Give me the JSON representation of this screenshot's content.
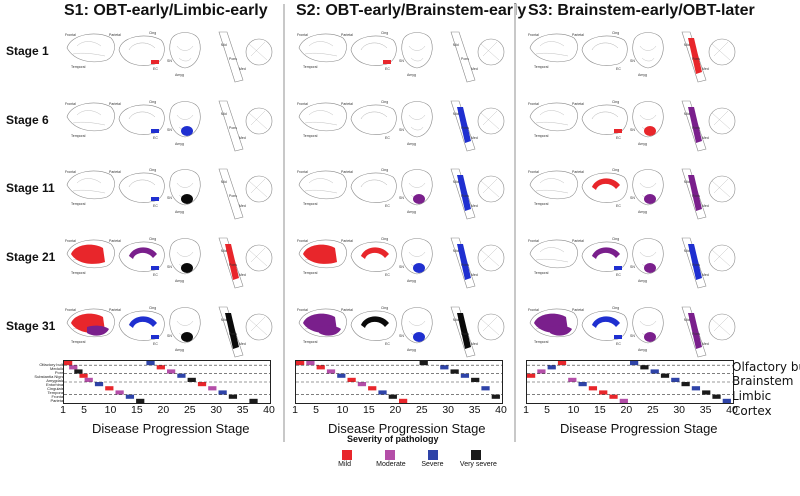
{
  "columns": [
    {
      "title": "S1: OBT-early/Limbic-early"
    },
    {
      "title": "S2: OBT-early/Brainstem-early"
    },
    {
      "title": "S3: Brainstem-early/OBT-later"
    }
  ],
  "stages": [
    "Stage 1",
    "Stage 6",
    "Stage 11",
    "Stage 21",
    "Stage 31"
  ],
  "brain_labels": {
    "frontal": "Frontal",
    "parietal": "Parietal",
    "temporal": "Temporal",
    "cing": "Cing",
    "amyg": "Amyg",
    "mid": "Mid",
    "pons": "Pons",
    "med": "Med",
    "sn": "SN",
    "ec": "EC"
  },
  "heatmap_row_labels": [
    "Olfactory bulb",
    "Medulla",
    "Pons",
    "Substantia Nigra",
    "Amygdala",
    "Entorhinal",
    "Cingulate",
    "Temporal",
    "Frontal",
    "Parietal"
  ],
  "region_labels": [
    "Olfactory bul",
    "Brainstem",
    "Limbic",
    "Cortex"
  ],
  "axis": {
    "ticks": [
      "1",
      "5",
      "10",
      "15",
      "20",
      "25",
      "30",
      "35",
      "40"
    ],
    "xlabel": "Disease Progression Stage"
  },
  "legend": {
    "title": "Severity of pathology",
    "items": [
      {
        "label": "Mild",
        "color": "#e8262b"
      },
      {
        "label": "Moderate",
        "color": "#b44ea8"
      },
      {
        "label": "Severe",
        "color": "#2e43a8"
      },
      {
        "label": "Very severe",
        "color": "#1a1a1a"
      }
    ]
  },
  "colors": {
    "red": "#e8262b",
    "purple": "#7a1f8c",
    "blue": "#1f2fd0",
    "black": "#0a0a0a",
    "divider": "#c8c8c8"
  }
}
